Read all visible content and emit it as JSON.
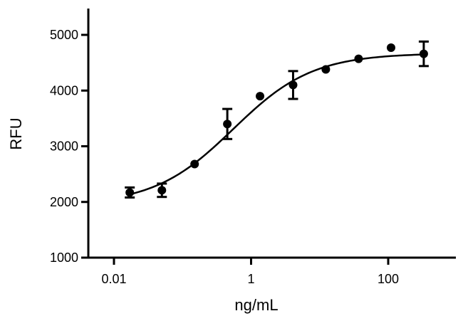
{
  "chart_data": {
    "type": "scatter",
    "xscale": "log",
    "xlabel": "ng/mL",
    "ylabel": "RFU",
    "xlim": [
      0.004,
      600
    ],
    "ylim": [
      1000,
      5500
    ],
    "xticks": [
      0.01,
      1,
      100
    ],
    "xtick_labels": [
      "0.01",
      "1",
      "100"
    ],
    "yticks": [
      1000,
      2000,
      3000,
      4000,
      5000
    ],
    "ytick_labels": [
      "1000",
      "2000",
      "3000",
      "4000",
      "5000"
    ],
    "grid": false,
    "series": [
      {
        "points": [
          {
            "x": 0.017,
            "y": 2170,
            "err": 90
          },
          {
            "x": 0.05,
            "y": 2210,
            "err": 120
          },
          {
            "x": 0.15,
            "y": 2680,
            "err": 0
          },
          {
            "x": 0.45,
            "y": 3400,
            "err": 270
          },
          {
            "x": 1.35,
            "y": 3900,
            "err": 0
          },
          {
            "x": 4.1,
            "y": 4100,
            "err": 250
          },
          {
            "x": 12.3,
            "y": 4380,
            "err": 0
          },
          {
            "x": 37,
            "y": 4570,
            "err": 0
          },
          {
            "x": 110,
            "y": 4770,
            "err": 0
          },
          {
            "x": 330,
            "y": 4660,
            "err": 220
          }
        ]
      }
    ],
    "fit": {
      "type": "four-parameter-logistic",
      "bottom": 1950,
      "top": 4670,
      "ec50": 0.55,
      "hill": 0.75
    }
  }
}
